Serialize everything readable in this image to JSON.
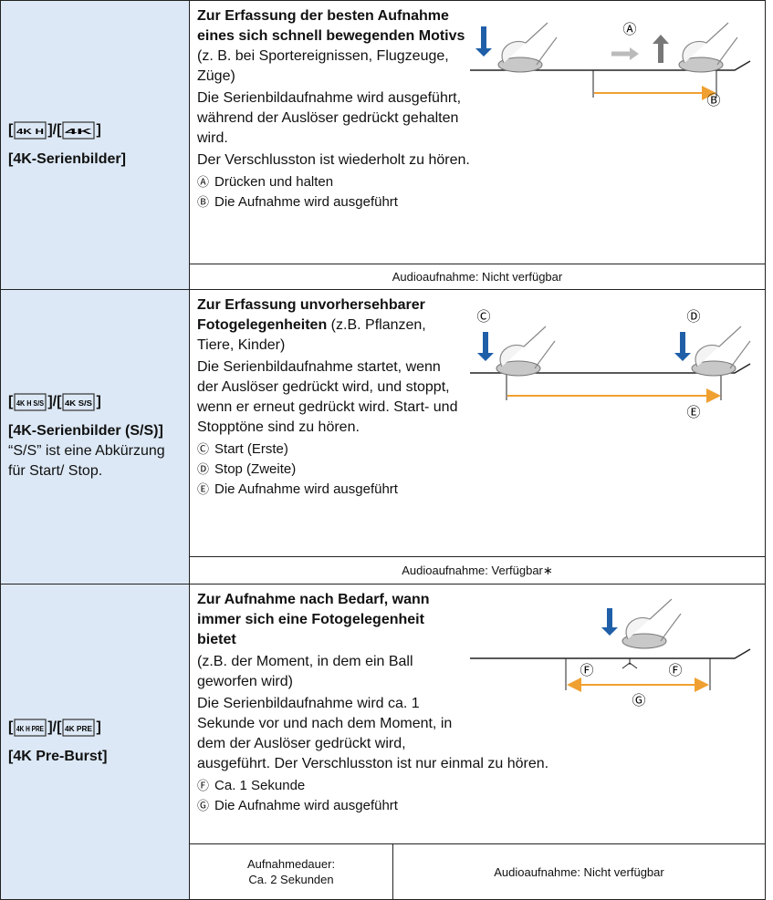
{
  "rows": [
    {
      "mode": [
        "[",
        "]/[",
        "]"
      ],
      "icons": [
        "4K H",
        "4K"
      ],
      "name": "[4K-Serienbilder]",
      "lead": "Zur Erfassung der besten Aufnahme eines sich schnell bewegenden Motivs",
      "lead_rest": " (z. B. bei Sportereignissen, Flugzeuge, Züge)",
      "body": [
        "Die Serienbildaufnahme wird ausgeführt, während der Auslöser gedrückt gehalten wird.",
        "Der Verschlusston ist wiederholt zu hören."
      ],
      "legend": [
        {
          "mark": "Ⓐ",
          "text": "Drücken und halten"
        },
        {
          "mark": "Ⓑ",
          "text": "Die Aufnahme wird ausgeführt"
        }
      ],
      "diagram_labels": [
        "Ⓐ",
        "Ⓑ"
      ],
      "footer": [
        "Audioaufnahme: Nicht verfügbar"
      ]
    },
    {
      "mode": [
        "[",
        "]/[",
        "]"
      ],
      "icons": [
        "4K H S/S",
        "4K S/S"
      ],
      "name": "[4K-Serienbilder (S/S)]",
      "note": "“S/S” ist eine Abkürzung für Start/ Stop.",
      "lead": "Zur Erfassung unvorhersehbarer Fotogelegenheiten",
      "lead_rest": " (z.B. Pflanzen, Tiere, Kinder)",
      "body": [
        "Die Serienbildaufnahme startet, wenn der Auslöser gedrückt wird, und stoppt, wenn er erneut gedrückt wird. Start- und Stopptöne sind zu hören."
      ],
      "legend": [
        {
          "mark": "Ⓒ",
          "text": "Start (Erste)"
        },
        {
          "mark": "Ⓓ",
          "text": "Stop (Zweite)"
        },
        {
          "mark": "Ⓔ",
          "text": "Die Aufnahme wird ausgeführt"
        }
      ],
      "diagram_labels": [
        "Ⓒ",
        "Ⓓ",
        "Ⓔ"
      ],
      "footer": [
        "Audioaufnahme: Verfügbar∗"
      ]
    },
    {
      "mode": [
        "[",
        "]/[",
        "]"
      ],
      "icons": [
        "4K H PRE",
        "4K PRE"
      ],
      "name": "[4K Pre-Burst]",
      "lead": "Zur Aufnahme nach Bedarf, wann immer sich eine Fotogelegenheit bietet",
      "body": [
        "(z.B. der Moment, in dem ein Ball geworfen wird)",
        "Die Serienbildaufnahme wird ca. 1 Sekunde vor und nach dem Moment, in dem der Auslöser gedrückt wird, ausgeführt. Der Verschlusston ist nur einmal zu hören."
      ],
      "legend": [
        {
          "mark": "Ⓕ",
          "text": "Ca. 1 Sekunde"
        },
        {
          "mark": "Ⓖ",
          "text": "Die Aufnahme wird ausgeführt"
        }
      ],
      "diagram_labels": [
        "Ⓕ",
        "Ⓕ",
        "Ⓖ"
      ],
      "footer": [
        "Aufnahmedauer:",
        "Ca. 2 Sekunden",
        "Audioaufnahme: Nicht verfügbar"
      ]
    }
  ]
}
